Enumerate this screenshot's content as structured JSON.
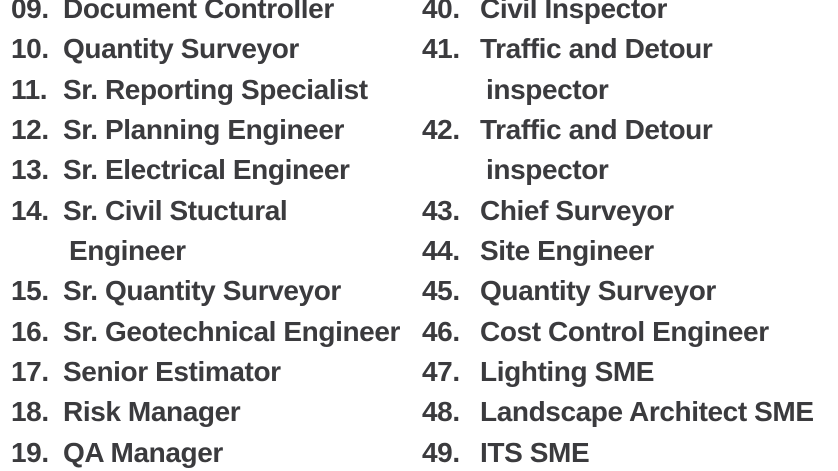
{
  "page": {
    "background_color": "#ffffff",
    "text_color": "#3b3b3e"
  },
  "list": {
    "columns": [
      {
        "name": "left",
        "items": [
          {
            "num": "09.",
            "lines": [
              "Document Controller"
            ]
          },
          {
            "num": "10.",
            "lines": [
              "Quantity Surveyor"
            ]
          },
          {
            "num": "11.",
            "lines": [
              "Sr. Reporting Specialist"
            ]
          },
          {
            "num": "12.",
            "lines": [
              "Sr. Planning Engineer"
            ]
          },
          {
            "num": "13.",
            "lines": [
              "Sr. Electrical Engineer"
            ]
          },
          {
            "num": "14.",
            "lines": [
              "Sr. Civil Stuctural",
              "Engineer"
            ]
          },
          {
            "num": "15.",
            "lines": [
              "Sr. Quantity Surveyor"
            ]
          },
          {
            "num": "16.",
            "lines": [
              "Sr. Geotechnical Engineer"
            ]
          },
          {
            "num": "17.",
            "lines": [
              "Senior Estimator"
            ]
          },
          {
            "num": "18.",
            "lines": [
              "Risk Manager"
            ]
          },
          {
            "num": "19.",
            "lines": [
              "QA Manager"
            ]
          }
        ]
      },
      {
        "name": "right",
        "items": [
          {
            "num": "40.",
            "lines": [
              "Civil Inspector"
            ]
          },
          {
            "num": "41.",
            "lines": [
              "Traffic and Detour",
              "inspector"
            ]
          },
          {
            "num": "42.",
            "lines": [
              "Traffic and Detour",
              "inspector"
            ]
          },
          {
            "num": "43.",
            "lines": [
              "Chief Surveyor"
            ]
          },
          {
            "num": "44.",
            "lines": [
              "Site Engineer"
            ]
          },
          {
            "num": "45.",
            "lines": [
              "Quantity Surveyor"
            ]
          },
          {
            "num": "46.",
            "lines": [
              "Cost Control Engineer"
            ]
          },
          {
            "num": "47.",
            "lines": [
              "Lighting SME"
            ]
          },
          {
            "num": "48.",
            "lines": [
              "Landscape Architect SME"
            ]
          },
          {
            "num": "49.",
            "lines": [
              "ITS SME"
            ]
          }
        ]
      }
    ]
  }
}
